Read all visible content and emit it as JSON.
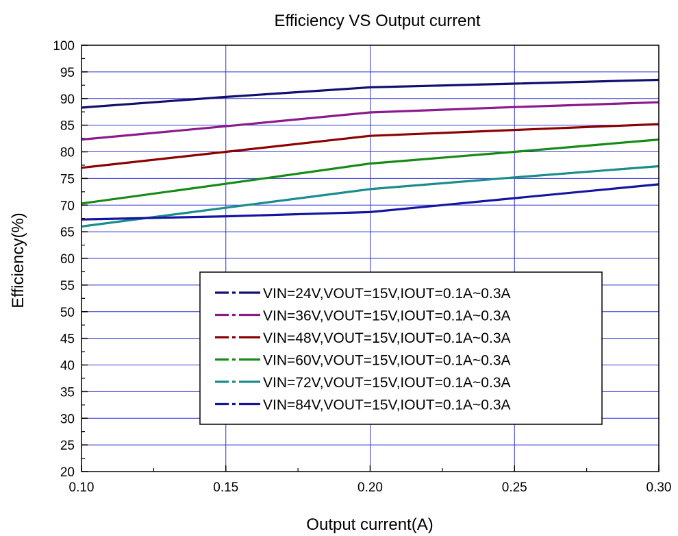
{
  "chart_data": {
    "type": "line",
    "title": "Efficiency VS Output current",
    "xlabel": "Output current(A)",
    "ylabel": "Efficiency(%)",
    "xlim": [
      0.1,
      0.3
    ],
    "ylim": [
      20,
      100
    ],
    "xticks": [
      "0.10",
      "0.15",
      "0.20",
      "0.25",
      "0.30"
    ],
    "xtick_values": [
      0.1,
      0.15,
      0.2,
      0.25,
      0.3
    ],
    "yticks": [
      "20",
      "25",
      "30",
      "35",
      "40",
      "45",
      "50",
      "55",
      "60",
      "65",
      "70",
      "75",
      "80",
      "85",
      "90",
      "95",
      "100"
    ],
    "ytick_values": [
      20,
      25,
      30,
      35,
      40,
      45,
      50,
      55,
      60,
      65,
      70,
      75,
      80,
      85,
      90,
      95,
      100
    ],
    "grid": true,
    "legend_position": "center",
    "x": [
      0.1,
      0.15,
      0.2,
      0.25,
      0.3
    ],
    "series": [
      {
        "name": "VIN=24V,VOUT=15V,IOUT=0.1A~0.3A",
        "color": "#101070",
        "values": [
          88.3,
          90.3,
          92.1,
          92.8,
          93.5
        ]
      },
      {
        "name": "VIN=36V,VOUT=15V,IOUT=0.1A~0.3A",
        "color": "#8B1A8B",
        "values": [
          82.3,
          84.8,
          87.4,
          88.4,
          89.3
        ]
      },
      {
        "name": "VIN=48V,VOUT=15V,IOUT=0.1A~0.3A",
        "color": "#8B0000",
        "values": [
          77.0,
          80.0,
          83.0,
          84.1,
          85.2
        ]
      },
      {
        "name": "VIN=60V,VOUT=15V,IOUT=0.1A~0.3A",
        "color": "#158A15",
        "values": [
          70.3,
          74.0,
          77.8,
          80.0,
          82.3
        ]
      },
      {
        "name": "VIN=72V,VOUT=15V,IOUT=0.1A~0.3A",
        "color": "#1A8C8C",
        "values": [
          66.0,
          69.5,
          73.0,
          75.2,
          77.3
        ]
      },
      {
        "name": "VIN=84V,VOUT=15V,IOUT=0.1A~0.3A",
        "color": "#1414A0",
        "values": [
          67.3,
          67.9,
          68.7,
          71.3,
          73.9
        ]
      }
    ]
  }
}
